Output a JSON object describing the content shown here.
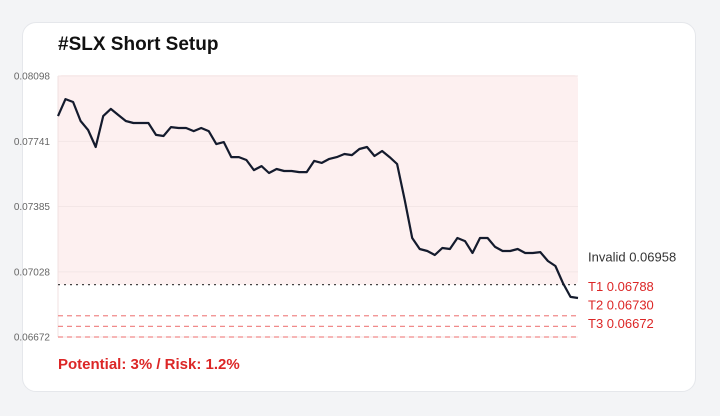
{
  "chart_data": {
    "type": "line",
    "title": "#SLX Short Setup",
    "annotation": "Potential: 3% / Risk: 1.2%",
    "color": "#141b2d",
    "values": [
      0.07879,
      0.07972,
      0.07956,
      0.07852,
      0.07803,
      0.0771,
      0.07879,
      0.07918,
      0.07885,
      0.07852,
      0.07841,
      0.07841,
      0.07841,
      0.07776,
      0.0777,
      0.07819,
      0.07814,
      0.07814,
      0.07797,
      0.07814,
      0.07797,
      0.07726,
      0.07737,
      0.07655,
      0.07655,
      0.07639,
      0.07584,
      0.07606,
      0.07568,
      0.0759,
      0.07579,
      0.07579,
      0.07573,
      0.07573,
      0.07634,
      0.07623,
      0.07645,
      0.07655,
      0.07672,
      0.07666,
      0.07699,
      0.0771,
      0.07661,
      0.07688,
      0.07655,
      0.07617,
      0.07421,
      0.07213,
      0.07153,
      0.07142,
      0.0712,
      0.07158,
      0.07153,
      0.07213,
      0.07196,
      0.07131,
      0.07213,
      0.07213,
      0.07164,
      0.07142,
      0.07142,
      0.07153,
      0.07131,
      0.07131,
      0.07136,
      0.07087,
      0.0706,
      0.06967,
      0.06891,
      0.06885
    ],
    "ylim": [
      0.06672,
      0.08098
    ],
    "yticks": [
      0.06672,
      0.07028,
      0.07385,
      0.07741,
      0.08098
    ],
    "grid": true,
    "levels": [
      {
        "name": "Invalid",
        "value": 0.06958,
        "value_label": "0.06958",
        "color": "#333333"
      },
      {
        "name": "T1",
        "value": 0.06788,
        "value_label": "0.06788",
        "color": "#dc2626"
      },
      {
        "name": "T2",
        "value": 0.0673,
        "value_label": "0.06730",
        "color": "#dc2626"
      },
      {
        "name": "T3",
        "value": 0.06672,
        "value_label": "0.06672",
        "color": "#dc2626"
      }
    ]
  }
}
